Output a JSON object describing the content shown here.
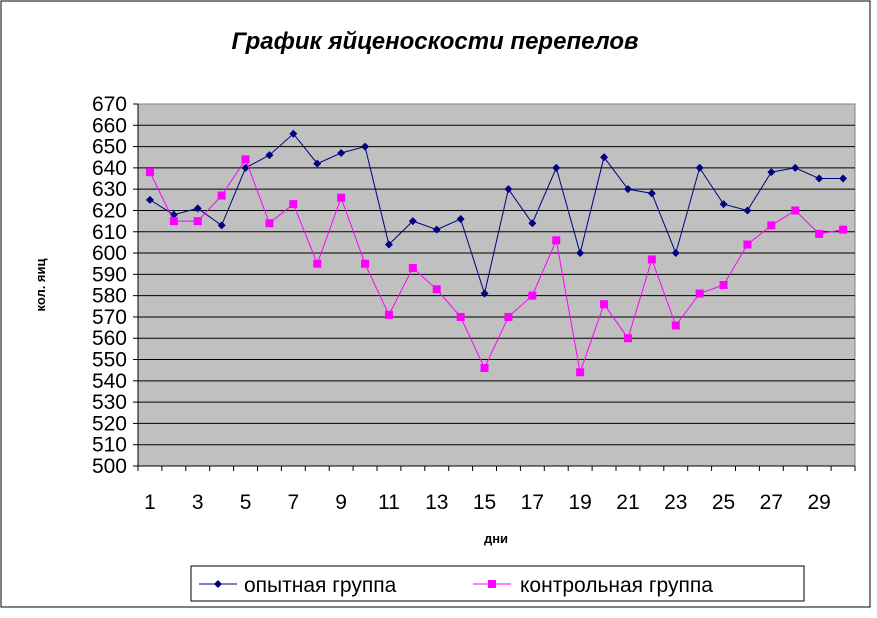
{
  "chart_data": {
    "type": "line",
    "title": "График яйценоскости перепелов",
    "xlabel": "дни",
    "ylabel": "кол. яиц",
    "ylim": [
      500,
      670
    ],
    "ytick_step": 10,
    "grid": true,
    "plot_background": "#c0c0c0",
    "legend_position": "bottom-right",
    "x": [
      1,
      2,
      3,
      4,
      5,
      6,
      7,
      8,
      9,
      10,
      11,
      12,
      13,
      14,
      15,
      16,
      17,
      18,
      19,
      20,
      21,
      22,
      23,
      24,
      25,
      26,
      27,
      28,
      29,
      30
    ],
    "x_tick_labels": [
      "1",
      "3",
      "5",
      "7",
      "9",
      "11",
      "13",
      "15",
      "17",
      "19",
      "21",
      "23",
      "25",
      "27",
      "29"
    ],
    "series": [
      {
        "name": "опытная группа",
        "color": "#000080",
        "marker": "diamond",
        "values": [
          625,
          618,
          621,
          613,
          640,
          646,
          656,
          642,
          647,
          650,
          604,
          615,
          611,
          616,
          581,
          630,
          614,
          640,
          600,
          645,
          630,
          628,
          600,
          640,
          623,
          620,
          638,
          640,
          635,
          635
        ]
      },
      {
        "name": "контрольная группа",
        "color": "#ff00ff",
        "marker": "square",
        "values": [
          638,
          615,
          615,
          627,
          644,
          614,
          623,
          595,
          626,
          595,
          571,
          593,
          583,
          570,
          546,
          570,
          580,
          606,
          544,
          576,
          560,
          597,
          566,
          581,
          585,
          604,
          613,
          620,
          609,
          611
        ]
      }
    ]
  }
}
